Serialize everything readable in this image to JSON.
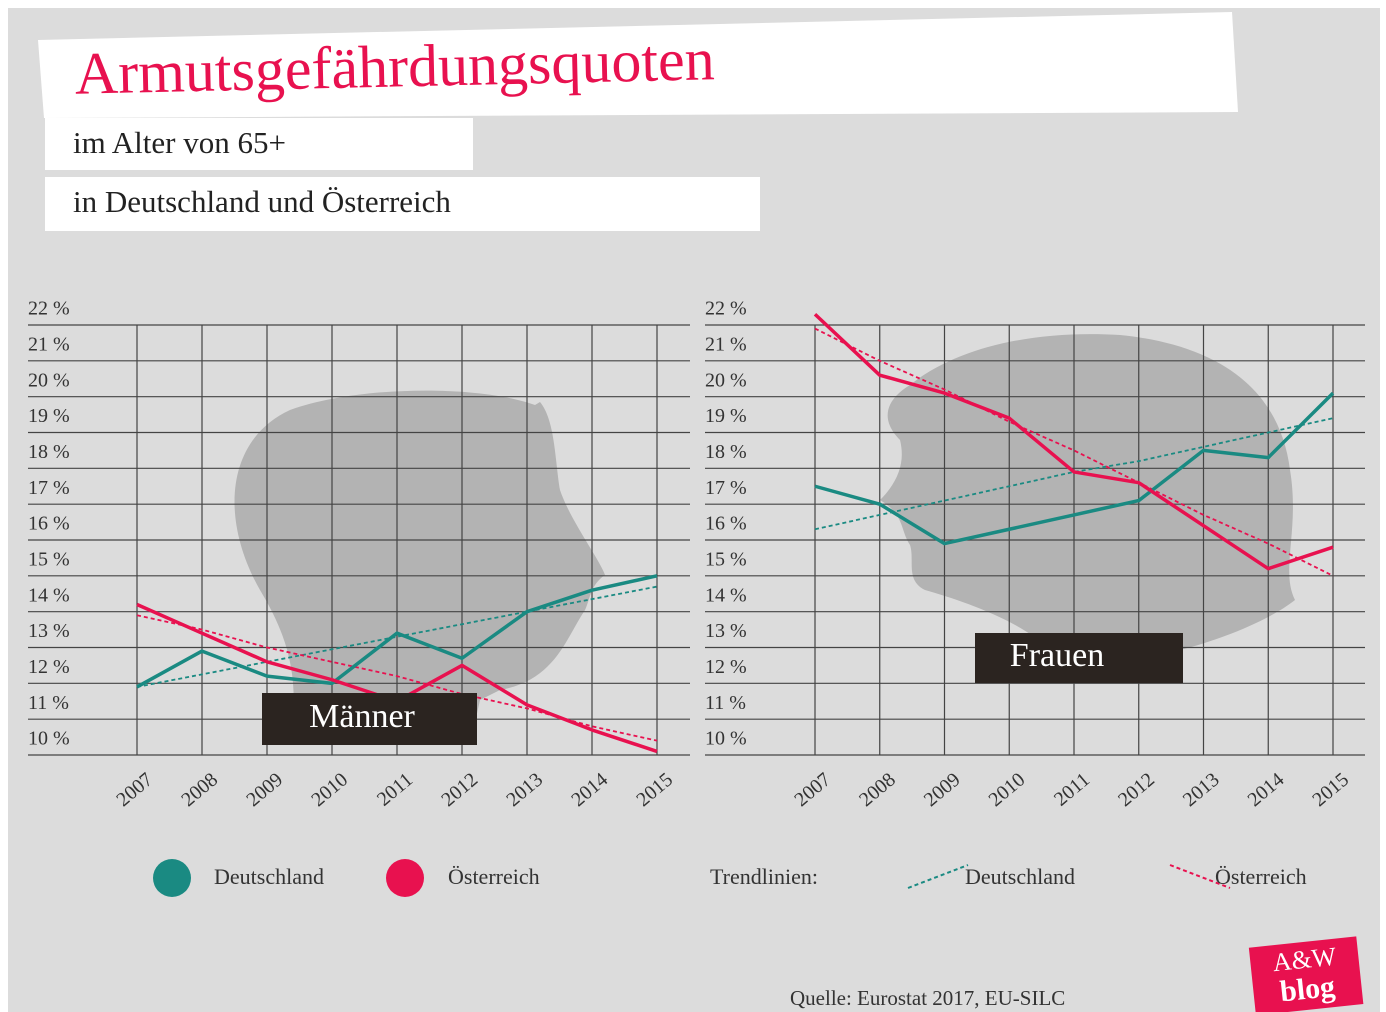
{
  "header": {
    "title": "Armutsgefährdungsquoten",
    "subtitle": "im Alter von 65+",
    "subtitle2": "in Deutschland und Österreich"
  },
  "chart_data": [
    {
      "type": "line",
      "annotation": "Männer",
      "categories": [
        "2007",
        "2008",
        "2009",
        "2010",
        "2011",
        "2012",
        "2013",
        "2014",
        "2015"
      ],
      "ylim": [
        10,
        22
      ],
      "yticks": [
        {
          "value": 10,
          "label": "10 %"
        },
        {
          "value": 11,
          "label": "11 %"
        },
        {
          "value": 12,
          "label": "12 %"
        },
        {
          "value": 13,
          "label": "13 %"
        },
        {
          "value": 14,
          "label": "14 %"
        },
        {
          "value": 15,
          "label": "15 %"
        },
        {
          "value": 16,
          "label": "16 %"
        },
        {
          "value": 17,
          "label": "17 %"
        },
        {
          "value": 18,
          "label": "18 %"
        },
        {
          "value": 19,
          "label": "19 %"
        },
        {
          "value": 20,
          "label": "20 %"
        },
        {
          "value": 21,
          "label": "21 %"
        },
        {
          "value": 22,
          "label": "22 %"
        }
      ],
      "grid": true,
      "series": [
        {
          "name": "Deutschland",
          "color": "#1a8a82",
          "style": "solid",
          "values": [
            11.9,
            12.9,
            12.2,
            12.0,
            13.4,
            12.7,
            14.0,
            14.6,
            15.0
          ]
        },
        {
          "name": "Österreich",
          "color": "#e8114f",
          "style": "solid",
          "values": [
            14.2,
            13.4,
            12.6,
            12.1,
            11.5,
            12.5,
            11.4,
            10.7,
            10.1
          ]
        },
        {
          "name": "Deutschland",
          "color": "#1a8a82",
          "style": "dashed",
          "values": [
            11.9,
            12.25,
            12.6,
            12.95,
            13.3,
            13.65,
            14.0,
            14.35,
            14.7
          ]
        },
        {
          "name": "Österreich",
          "color": "#e8114f",
          "style": "dashed",
          "values": [
            13.9,
            13.5,
            13.0,
            12.6,
            12.2,
            11.7,
            11.3,
            10.8,
            10.4
          ]
        }
      ]
    },
    {
      "type": "line",
      "annotation": "Frauen",
      "categories": [
        "2007",
        "2008",
        "2009",
        "2010",
        "2011",
        "2012",
        "2013",
        "2014",
        "2015"
      ],
      "ylim": [
        10,
        22
      ],
      "yticks": [
        {
          "value": 10,
          "label": "10 %"
        },
        {
          "value": 11,
          "label": "11 %"
        },
        {
          "value": 12,
          "label": "12 %"
        },
        {
          "value": 13,
          "label": "13 %"
        },
        {
          "value": 14,
          "label": "14 %"
        },
        {
          "value": 15,
          "label": "15 %"
        },
        {
          "value": 16,
          "label": "16 %"
        },
        {
          "value": 17,
          "label": "17 %"
        },
        {
          "value": 18,
          "label": "18 %"
        },
        {
          "value": 19,
          "label": "19 %"
        },
        {
          "value": 20,
          "label": "20 %"
        },
        {
          "value": 21,
          "label": "21 %"
        },
        {
          "value": 22,
          "label": "22 %"
        }
      ],
      "grid": true,
      "series": [
        {
          "color": "#1a8a82",
          "style": "solid",
          "values": [
            17.5,
            17.0,
            15.9,
            16.3,
            16.7,
            17.1,
            18.5,
            18.3,
            20.1
          ]
        },
        {
          "color": "#e8114f",
          "style": "solid",
          "values": [
            22.3,
            20.6,
            20.1,
            19.4,
            17.9,
            17.6,
            16.4,
            15.2,
            15.8
          ]
        },
        {
          "color": "#1a8a82",
          "style": "dashed",
          "values": [
            16.3,
            16.7,
            17.1,
            17.5,
            17.9,
            18.2,
            18.6,
            19.0,
            19.4
          ]
        },
        {
          "color": "#e8114f",
          "style": "dashed",
          "values": [
            21.9,
            21.0,
            20.2,
            19.3,
            18.5,
            17.6,
            16.7,
            15.9,
            15.0
          ]
        }
      ]
    }
  ],
  "legend": {
    "trend_label": "Trendlinien:"
  },
  "source": "Quelle:  Eurostat 2017, EU-SILC",
  "logo": {
    "top": "A&W",
    "bottom": "blog"
  }
}
